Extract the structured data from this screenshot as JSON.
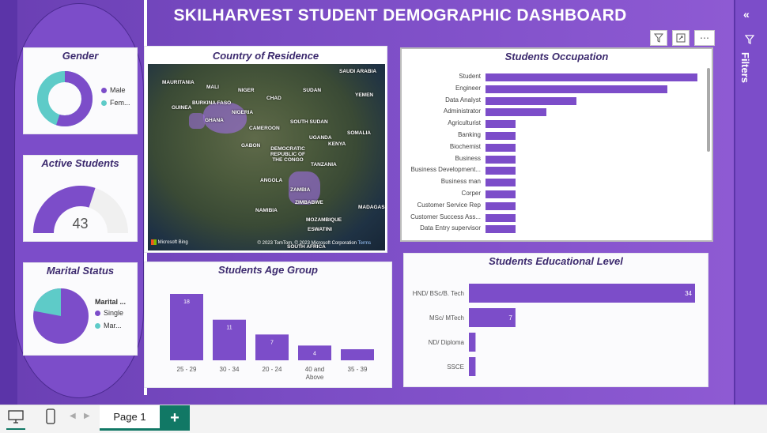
{
  "header": {
    "title": "SKILHARVEST STUDENT DEMOGRAPHIC DASHBOARD"
  },
  "gender": {
    "title": "Gender",
    "legend": [
      "Male",
      "Fem..."
    ],
    "colors": [
      "#7c4dc9",
      "#5ecbc8"
    ],
    "values": [
      0.55,
      0.45
    ]
  },
  "active": {
    "title": "Active Students",
    "value": "43",
    "fill_fraction": 0.6
  },
  "marital": {
    "title": "Marital Status",
    "legend_title": "Marital ...",
    "legend": [
      "Single",
      "Mar..."
    ],
    "values": [
      0.78,
      0.22
    ]
  },
  "map": {
    "title": "Country of Residence",
    "attribution": "Microsoft Bing",
    "copyright": "© 2023 TomTom, © 2023 Microsoft Corporation",
    "terms": "Terms",
    "labels": [
      "MAURITANIA",
      "MALI",
      "NIGER",
      "CHAD",
      "SUDAN",
      "SAUDI ARABIA",
      "YEMEN",
      "BURKINA FASO",
      "GUINEA",
      "GHANA",
      "NIGERIA",
      "CAMEROON",
      "SOUTH SUDAN",
      "SOMALIA",
      "UGANDA",
      "KENYA",
      "GABON",
      "DEMOCRATIC REPUBLIC OF THE CONGO",
      "TANZANIA",
      "ANGOLA",
      "ZAMBIA",
      "ZIMBABWE",
      "MADAGASCAR",
      "NAMIBIA",
      "MOZAMBIQUE",
      "ESWATINI",
      "SOUTH AFRICA"
    ]
  },
  "occupation": {
    "title": "Students Occupation",
    "categories": [
      "Student",
      "Engineer",
      "Data Analyst",
      "Administrator",
      "Agriculturist",
      "Banking",
      "Biochemist",
      "Business",
      "Business Development...",
      "Business man",
      "Corper",
      "Customer Service Rep",
      "Customer Success Ass...",
      "Data Entry supervisor"
    ],
    "values": [
      14,
      12,
      6,
      4,
      2,
      2,
      2,
      2,
      2,
      2,
      2,
      2,
      2,
      2
    ]
  },
  "toolbar": {
    "filter_icon": "filter-icon",
    "focus_icon": "focus-mode-icon",
    "more_icon": "more-options-icon"
  },
  "chart_data": [
    {
      "type": "bar",
      "title": "Students Age Group",
      "categories": [
        "25 - 29",
        "30 - 34",
        "20 - 24",
        "40 and Above",
        "35 - 39"
      ],
      "values": [
        18,
        11,
        7,
        4,
        3
      ]
    },
    {
      "type": "bar",
      "title": "Students Educational Level",
      "categories": [
        "HND/ BSc/B. Tech",
        "MSc/ MTech",
        "ND/ Diploma",
        "SSCE"
      ],
      "values": [
        34,
        7,
        1,
        1
      ]
    }
  ],
  "filters": {
    "label": "Filters"
  },
  "bottom": {
    "page_tab": "Page 1",
    "add_tab": "+"
  }
}
